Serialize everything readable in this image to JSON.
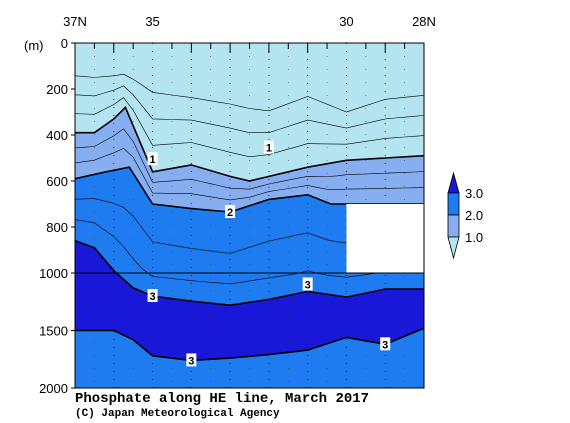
{
  "chart_data": {
    "type": "contour-section",
    "title": "Phosphate along HE line, March 2017",
    "credit": "(C) Japan Meteorological Agency",
    "x_axis": {
      "direction": "north-to-south",
      "range": [
        37,
        28
      ],
      "tick_labels": [
        {
          "lat": 37,
          "label": "37N"
        },
        {
          "lat": 35,
          "label": "35"
        },
        {
          "lat": 30,
          "label": "30"
        },
        {
          "lat": 28,
          "label": "28N"
        }
      ],
      "minor_ticks": [
        36.5,
        36,
        35.5,
        34.5,
        34,
        33.5,
        33,
        32.5,
        32,
        31.5,
        31,
        30.5,
        29.5,
        29,
        28.5
      ]
    },
    "y_axis": {
      "unit_label": "(m)",
      "range": [
        0,
        2000
      ],
      "tick_labels": [
        {
          "depth": 0,
          "label": "0"
        },
        {
          "depth": 200,
          "label": "200"
        },
        {
          "depth": 400,
          "label": "400"
        },
        {
          "depth": 600,
          "label": "600"
        },
        {
          "depth": 800,
          "label": "800"
        },
        {
          "depth": 1000,
          "label": "1000"
        },
        {
          "depth": 1500,
          "label": "1500"
        },
        {
          "depth": 2000,
          "label": "2000"
        }
      ],
      "scale_break_depth": 1000
    },
    "legend": {
      "position": "right",
      "levels": [
        "3.0",
        "2.0",
        "1.0"
      ],
      "colors": {
        "low": "#b3e4f0",
        "mid": "#86aef0",
        "high": "#1e7cf0",
        "higher": "#1a18d8"
      }
    },
    "stations": [
      37,
      36.5,
      36,
      35.5,
      35,
      34.5,
      34,
      33.5,
      33,
      32.5,
      32,
      31.5,
      31,
      30.5,
      30,
      29.5,
      29,
      28.5,
      28
    ],
    "contours": [
      {
        "level": 1,
        "label": "1",
        "points": [
          [
            37,
            390
          ],
          [
            36.5,
            390
          ],
          [
            36,
            330
          ],
          [
            35.7,
            280
          ],
          [
            35,
            560
          ],
          [
            34,
            530
          ],
          [
            33,
            580
          ],
          [
            32.5,
            600
          ],
          [
            31,
            540
          ],
          [
            30,
            510
          ],
          [
            28,
            490
          ]
        ],
        "label_at": [
          [
            35,
            505
          ],
          [
            32,
            455
          ]
        ]
      },
      {
        "level": 2,
        "label": "2",
        "points": [
          [
            37,
            590
          ],
          [
            36.2,
            560
          ],
          [
            35.6,
            540
          ],
          [
            35,
            700
          ],
          [
            34,
            720
          ],
          [
            33,
            735
          ],
          [
            32,
            680
          ],
          [
            31,
            660
          ],
          [
            30.4,
            700
          ],
          [
            28,
            700
          ]
        ],
        "label_at": [
          [
            33,
            735
          ]
        ]
      },
      {
        "level": 3,
        "label": "3",
        "points": [
          [
            37,
            860
          ],
          [
            36.5,
            890
          ],
          [
            36,
            990
          ],
          [
            35.5,
            1130
          ],
          [
            35,
            1200
          ],
          [
            34,
            1245
          ],
          [
            33,
            1280
          ],
          [
            32,
            1230
          ],
          [
            31,
            1160
          ],
          [
            30,
            1210
          ],
          [
            29,
            1140
          ],
          [
            28,
            1140
          ]
        ],
        "label_at": [
          [
            35,
            1200
          ],
          [
            31,
            1100
          ]
        ]
      },
      {
        "level": 3,
        "label": "3",
        "points": [
          [
            37,
            1500
          ],
          [
            36,
            1500
          ],
          [
            35.5,
            1580
          ],
          [
            35,
            1720
          ],
          [
            34,
            1760
          ],
          [
            33,
            1740
          ],
          [
            32,
            1710
          ],
          [
            31,
            1670
          ],
          [
            30,
            1560
          ],
          [
            29,
            1620
          ],
          [
            28,
            1480
          ]
        ],
        "label_at": [
          [
            34,
            1760
          ],
          [
            29,
            1620
          ]
        ]
      }
    ],
    "missing_region": {
      "lat": [
        30,
        28
      ],
      "depth": [
        700,
        1000
      ]
    }
  }
}
